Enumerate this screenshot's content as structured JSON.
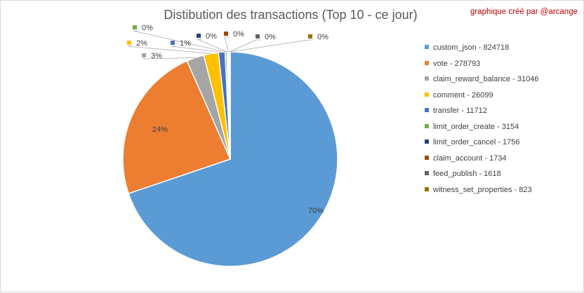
{
  "credit": "graphique créé par @arcange",
  "chart_data": {
    "type": "pie",
    "title": "Distibution des transactions  (Top 10 - ce jour)",
    "legend_position": "right",
    "slices": [
      {
        "label": "custom_json",
        "value": 824718,
        "pct_label": "70%",
        "color": "#5b9bd5",
        "legend": "custom_json - 824718"
      },
      {
        "label": "vote",
        "value": 278793,
        "pct_label": "24%",
        "color": "#ed7d31",
        "legend": "vote - 278793"
      },
      {
        "label": "claim_reward_balance",
        "value": 31046,
        "pct_label": "3%",
        "color": "#a5a5a5",
        "legend": "claim_reward_balance - 31046"
      },
      {
        "label": "comment",
        "value": 26099,
        "pct_label": "2%",
        "color": "#ffc000",
        "legend": "comment - 26099"
      },
      {
        "label": "transfer",
        "value": 11712,
        "pct_label": "1%",
        "color": "#4472c4",
        "legend": "transfer - 11712"
      },
      {
        "label": "limit_order_create",
        "value": 3154,
        "pct_label": "0%",
        "color": "#70ad47",
        "legend": "limit_order_create - 3154"
      },
      {
        "label": "limit_order_cancel",
        "value": 1756,
        "pct_label": "0%",
        "color": "#264478",
        "legend": "limit_order_cancel - 1756"
      },
      {
        "label": "claim_account",
        "value": 1734,
        "pct_label": "0%",
        "color": "#9e480e",
        "legend": "claim_account - 1734"
      },
      {
        "label": "feed_publish",
        "value": 1618,
        "pct_label": "0%",
        "color": "#636363",
        "legend": "feed_publish - 1618"
      },
      {
        "label": "witness_set_properties",
        "value": 823,
        "pct_label": "0%",
        "color": "#997300",
        "legend": "witness_set_properties - 823"
      }
    ]
  }
}
